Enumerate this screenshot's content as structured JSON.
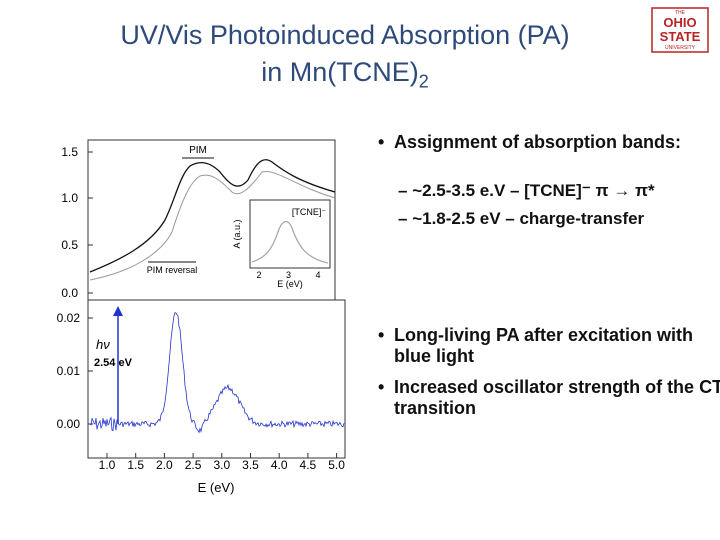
{
  "header": {
    "title_line1": "UV/Vis Photoinduced Absorption (PA)",
    "title_line2": "in Mn(TCNE)",
    "title_line2_subscript": "2",
    "logo": [
      "THE",
      "OHIO",
      "STATE",
      "UNIVERSITY"
    ]
  },
  "figure": {
    "upper_y_ticks": [
      "1.5",
      "1.0",
      "0.5",
      "0.0"
    ],
    "lower_y_ticks": [
      "0.02",
      "0.01",
      "0.00"
    ],
    "x_ticks": [
      "1.0",
      "1.5",
      "2.0",
      "2.5",
      "3.0",
      "3.5",
      "4.0",
      "4.5",
      "5.0"
    ],
    "x_label": "E (eV)",
    "annotation_pim": "PIM",
    "annotation_pim_reversal": "PIM reversal",
    "annotation_hv": "hν",
    "annotation_energy": "2.54 eV",
    "inset": {
      "y_label": "A (a.u.)",
      "x_ticks": [
        "2",
        "3",
        "4"
      ],
      "x_label": "E (eV)",
      "species": "[TCNE]⁻"
    }
  },
  "bullets": [
    {
      "text": "Assignment of absorption bands:",
      "sub": [
        "~2.5-3.5 e.V – [TCNE]⁻  π → π*",
        "~1.8-2.5 eV – charge-transfer"
      ]
    },
    {
      "text": "Long-living PA after excitation with blue light"
    },
    {
      "text": "Increased oscillator strength of the CT transition"
    }
  ]
}
